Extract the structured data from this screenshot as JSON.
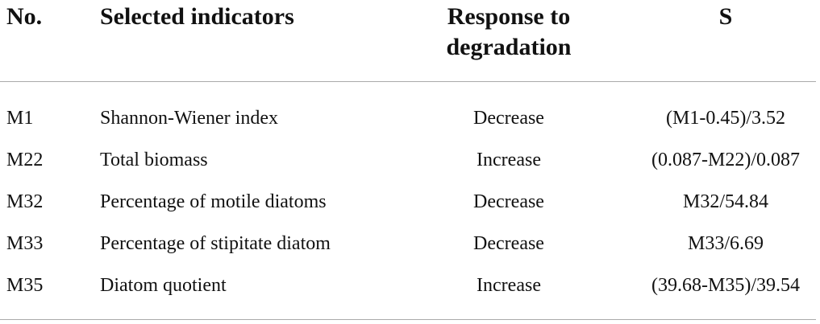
{
  "table": {
    "header": [
      "No.",
      "Selected indicators",
      "Response to degradation",
      "S"
    ],
    "rows": [
      [
        "M1",
        "Shannon-Wiener index",
        "Decrease",
        "(M1-0.45)/3.52"
      ],
      [
        "M22",
        "Total biomass",
        "Increase",
        "(0.087-M22)/0.087"
      ],
      [
        "M32",
        "Percentage of motile diatoms",
        "Decrease",
        "M32/54.84"
      ],
      [
        "M33",
        "Percentage of stipitate diatom",
        "Decrease",
        "M33/6.69"
      ],
      [
        "M35",
        "Diatom quotient",
        "Increase",
        "(39.68-M35)/39.54"
      ]
    ]
  }
}
